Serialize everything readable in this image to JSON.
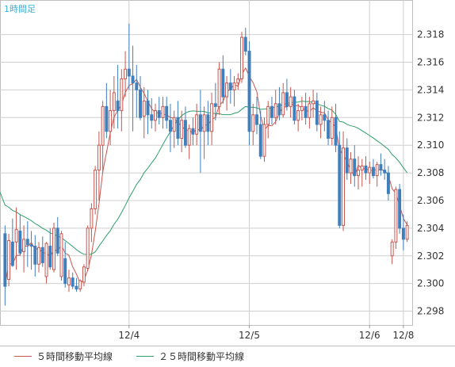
{
  "chart_data": {
    "type": "candlestick",
    "timeframe_label": "1時間足",
    "ylim": [
      2.297,
      2.3205
    ],
    "y_ticks": [
      "2.298",
      "2.300",
      "2.302",
      "2.304",
      "2.306",
      "2.308",
      "2.310",
      "2.312",
      "2.314",
      "2.316",
      "2.318"
    ],
    "x_ticks": [
      {
        "index": 33,
        "label": "12/4"
      },
      {
        "index": 65,
        "label": "12/5"
      },
      {
        "index": 97,
        "label": "12/6"
      },
      {
        "index": 106,
        "label": "12/8"
      }
    ],
    "ohlc": [
      [
        2.3036,
        2.3042,
        2.2984,
        2.2998
      ],
      [
        2.3003,
        2.3036,
        2.2998,
        2.3031
      ],
      [
        2.303,
        2.3047,
        2.3012,
        2.3013
      ],
      [
        2.303,
        2.3055,
        2.301,
        2.3039
      ],
      [
        2.3038,
        2.305,
        2.302,
        2.3022
      ],
      [
        2.3023,
        2.3042,
        2.3008,
        2.3032
      ],
      [
        2.3032,
        2.3045,
        2.3012,
        2.3028
      ],
      [
        2.3028,
        2.3038,
        2.301,
        2.3027
      ],
      [
        2.3027,
        2.3035,
        2.3005,
        2.3014
      ],
      [
        2.3014,
        2.303,
        2.3008,
        2.3026
      ],
      [
        2.3026,
        2.3034,
        2.3012,
        2.3015
      ],
      [
        2.3005,
        2.303,
        2.3,
        2.3029
      ],
      [
        2.3027,
        2.304,
        2.301,
        2.3012
      ],
      [
        2.301,
        2.3044,
        2.3008,
        2.304
      ],
      [
        2.304,
        2.3048,
        2.302,
        2.3022
      ],
      [
        2.3005,
        2.3038,
        2.3002,
        2.3036
      ],
      [
        2.3018,
        2.303,
        2.2997,
        2.3
      ],
      [
        2.2999,
        2.301,
        2.2994,
        2.3004
      ],
      [
        2.3004,
        2.3008,
        2.2996,
        2.2998
      ],
      [
        2.2998,
        2.3004,
        2.2994,
        2.2996
      ],
      [
        2.2996,
        2.3003,
        2.2994,
        2.3002
      ],
      [
        2.3001,
        2.3014,
        2.2998,
        2.3012
      ],
      [
        2.3011,
        2.3042,
        2.3009,
        2.304
      ],
      [
        2.304,
        2.3058,
        2.303,
        2.3054
      ],
      [
        2.3054,
        2.3085,
        2.305,
        2.3082
      ],
      [
        2.3082,
        2.311,
        2.306,
        2.31
      ],
      [
        2.31,
        2.3132,
        2.308,
        2.3128
      ],
      [
        2.3128,
        2.3145,
        2.3105,
        2.311
      ],
      [
        2.311,
        2.314,
        2.31,
        2.3125
      ],
      [
        2.3125,
        2.315,
        2.3112,
        2.3138
      ],
      [
        2.3132,
        2.3158,
        2.3112,
        2.3125
      ],
      [
        2.3125,
        2.3155,
        2.311,
        2.3148
      ],
      [
        2.3148,
        2.3168,
        2.3135,
        2.3155
      ],
      [
        2.3155,
        2.3188,
        2.314,
        2.315
      ],
      [
        2.315,
        2.3172,
        2.311,
        2.3145
      ],
      [
        2.3145,
        2.3158,
        2.312,
        2.314
      ],
      [
        2.314,
        2.315,
        2.3118,
        2.312
      ],
      [
        2.3121,
        2.3142,
        2.3105,
        2.3132
      ],
      [
        2.3132,
        2.314,
        2.3108,
        2.3122
      ],
      [
        2.3122,
        2.3134,
        2.3112,
        2.3118
      ],
      [
        2.3118,
        2.313,
        2.311,
        2.3125
      ],
      [
        2.3125,
        2.3135,
        2.3115,
        2.312
      ],
      [
        2.312,
        2.3135,
        2.3112,
        2.3128
      ],
      [
        2.3128,
        2.3135,
        2.3112,
        2.3118
      ],
      [
        2.3118,
        2.313,
        2.3095,
        2.311
      ],
      [
        2.311,
        2.3125,
        2.3098,
        2.312
      ],
      [
        2.312,
        2.3132,
        2.31,
        2.3105
      ],
      [
        2.3105,
        2.3125,
        2.3095,
        2.3118
      ],
      [
        2.3118,
        2.3128,
        2.3098,
        2.31
      ],
      [
        2.31,
        2.3115,
        2.309,
        2.3112
      ],
      [
        2.3112,
        2.312,
        2.31,
        2.3108
      ],
      [
        2.3108,
        2.313,
        2.31,
        2.3122
      ],
      [
        2.3122,
        2.314,
        2.308,
        2.311
      ],
      [
        2.311,
        2.3128,
        2.309,
        2.3122
      ],
      [
        2.3122,
        2.3132,
        2.31,
        2.311
      ],
      [
        2.311,
        2.3138,
        2.31,
        2.313
      ],
      [
        2.313,
        2.3145,
        2.3118,
        2.3128
      ],
      [
        2.3128,
        2.316,
        2.3122,
        2.3155
      ],
      [
        2.3155,
        2.3165,
        2.313,
        2.3135
      ],
      [
        2.3135,
        2.315,
        2.3125,
        2.3145
      ],
      [
        2.3145,
        2.3155,
        2.313,
        2.314
      ],
      [
        2.314,
        2.315,
        2.3128,
        2.3145
      ],
      [
        2.3145,
        2.3152,
        2.314,
        2.3148
      ],
      [
        2.3148,
        2.3182,
        2.3145,
        2.3178
      ],
      [
        2.3178,
        2.3185,
        2.3165,
        2.3168
      ],
      [
        2.3168,
        2.3175,
        2.31,
        2.311
      ],
      [
        2.311,
        2.313,
        2.31,
        2.3122
      ],
      [
        2.3122,
        2.3135,
        2.3108,
        2.3115
      ],
      [
        2.3115,
        2.3125,
        2.309,
        2.3092
      ],
      [
        2.3092,
        2.312,
        2.3088,
        2.3115
      ],
      [
        2.3115,
        2.3132,
        2.3105,
        2.3128
      ],
      [
        2.3128,
        2.3135,
        2.3115,
        2.312
      ],
      [
        2.312,
        2.314,
        2.3115,
        2.313
      ],
      [
        2.313,
        2.3142,
        2.3118,
        2.3122
      ],
      [
        2.3122,
        2.3145,
        2.312,
        2.3138
      ],
      [
        2.3138,
        2.3148,
        2.3125,
        2.3128
      ],
      [
        2.3128,
        2.3142,
        2.312,
        2.3135
      ],
      [
        2.3135,
        2.314,
        2.3115,
        2.3118
      ],
      [
        2.3118,
        2.313,
        2.311,
        2.3125
      ],
      [
        2.3125,
        2.3135,
        2.3118,
        2.3128
      ],
      [
        2.3128,
        2.3138,
        2.3115,
        2.312
      ],
      [
        2.312,
        2.3135,
        2.3112,
        2.313
      ],
      [
        2.313,
        2.314,
        2.312,
        2.3132
      ],
      [
        2.3132,
        2.3138,
        2.311,
        2.3115
      ],
      [
        2.3115,
        2.3128,
        2.3105,
        2.3122
      ],
      [
        2.3122,
        2.3132,
        2.311,
        2.3118
      ],
      [
        2.3118,
        2.3125,
        2.31,
        2.3105
      ],
      [
        2.3105,
        2.3128,
        2.31,
        2.312
      ],
      [
        2.312,
        2.313,
        2.3095,
        2.31
      ],
      [
        2.31,
        2.311,
        2.304,
        2.3042
      ],
      [
        2.3042,
        2.311,
        2.3038,
        2.3098
      ],
      [
        2.3098,
        2.3105,
        2.3075,
        2.308
      ],
      [
        2.308,
        2.3095,
        2.3072,
        2.309
      ],
      [
        2.309,
        2.31,
        2.307,
        2.3078
      ],
      [
        2.3078,
        2.3092,
        2.3068,
        2.3082
      ],
      [
        2.3082,
        2.309,
        2.307,
        2.3085
      ],
      [
        2.3085,
        2.3092,
        2.3075,
        2.308
      ],
      [
        2.308,
        2.3088,
        2.3072,
        2.3084
      ],
      [
        2.3084,
        2.309,
        2.3076,
        2.3078
      ],
      [
        2.3078,
        2.3088,
        2.307,
        2.3086
      ],
      [
        2.3086,
        2.3094,
        2.3078,
        2.3082
      ],
      [
        2.3082,
        2.309,
        2.3075,
        2.308
      ],
      [
        2.308,
        2.3085,
        2.306,
        2.3065
      ],
      [
        2.302,
        2.3032,
        2.3014,
        2.303
      ],
      [
        2.303,
        2.307,
        2.3025,
        2.3068
      ],
      [
        2.3068,
        2.3072,
        2.3036,
        2.304
      ],
      [
        2.304,
        2.305,
        2.3024,
        2.3032
      ],
      [
        2.3032,
        2.3045,
        2.303,
        2.3042
      ]
    ]
  },
  "legend": {
    "ma5_label": "５時間移動平均線",
    "ma25_label": "２５時間移動平均線",
    "ma5_color": "#c9564e",
    "ma25_color": "#2ea06a"
  },
  "colors": {
    "bull": "#c9564e",
    "bear": "#3f7fbd",
    "grid": "#cfcfcf",
    "axis_text": "#333333"
  }
}
